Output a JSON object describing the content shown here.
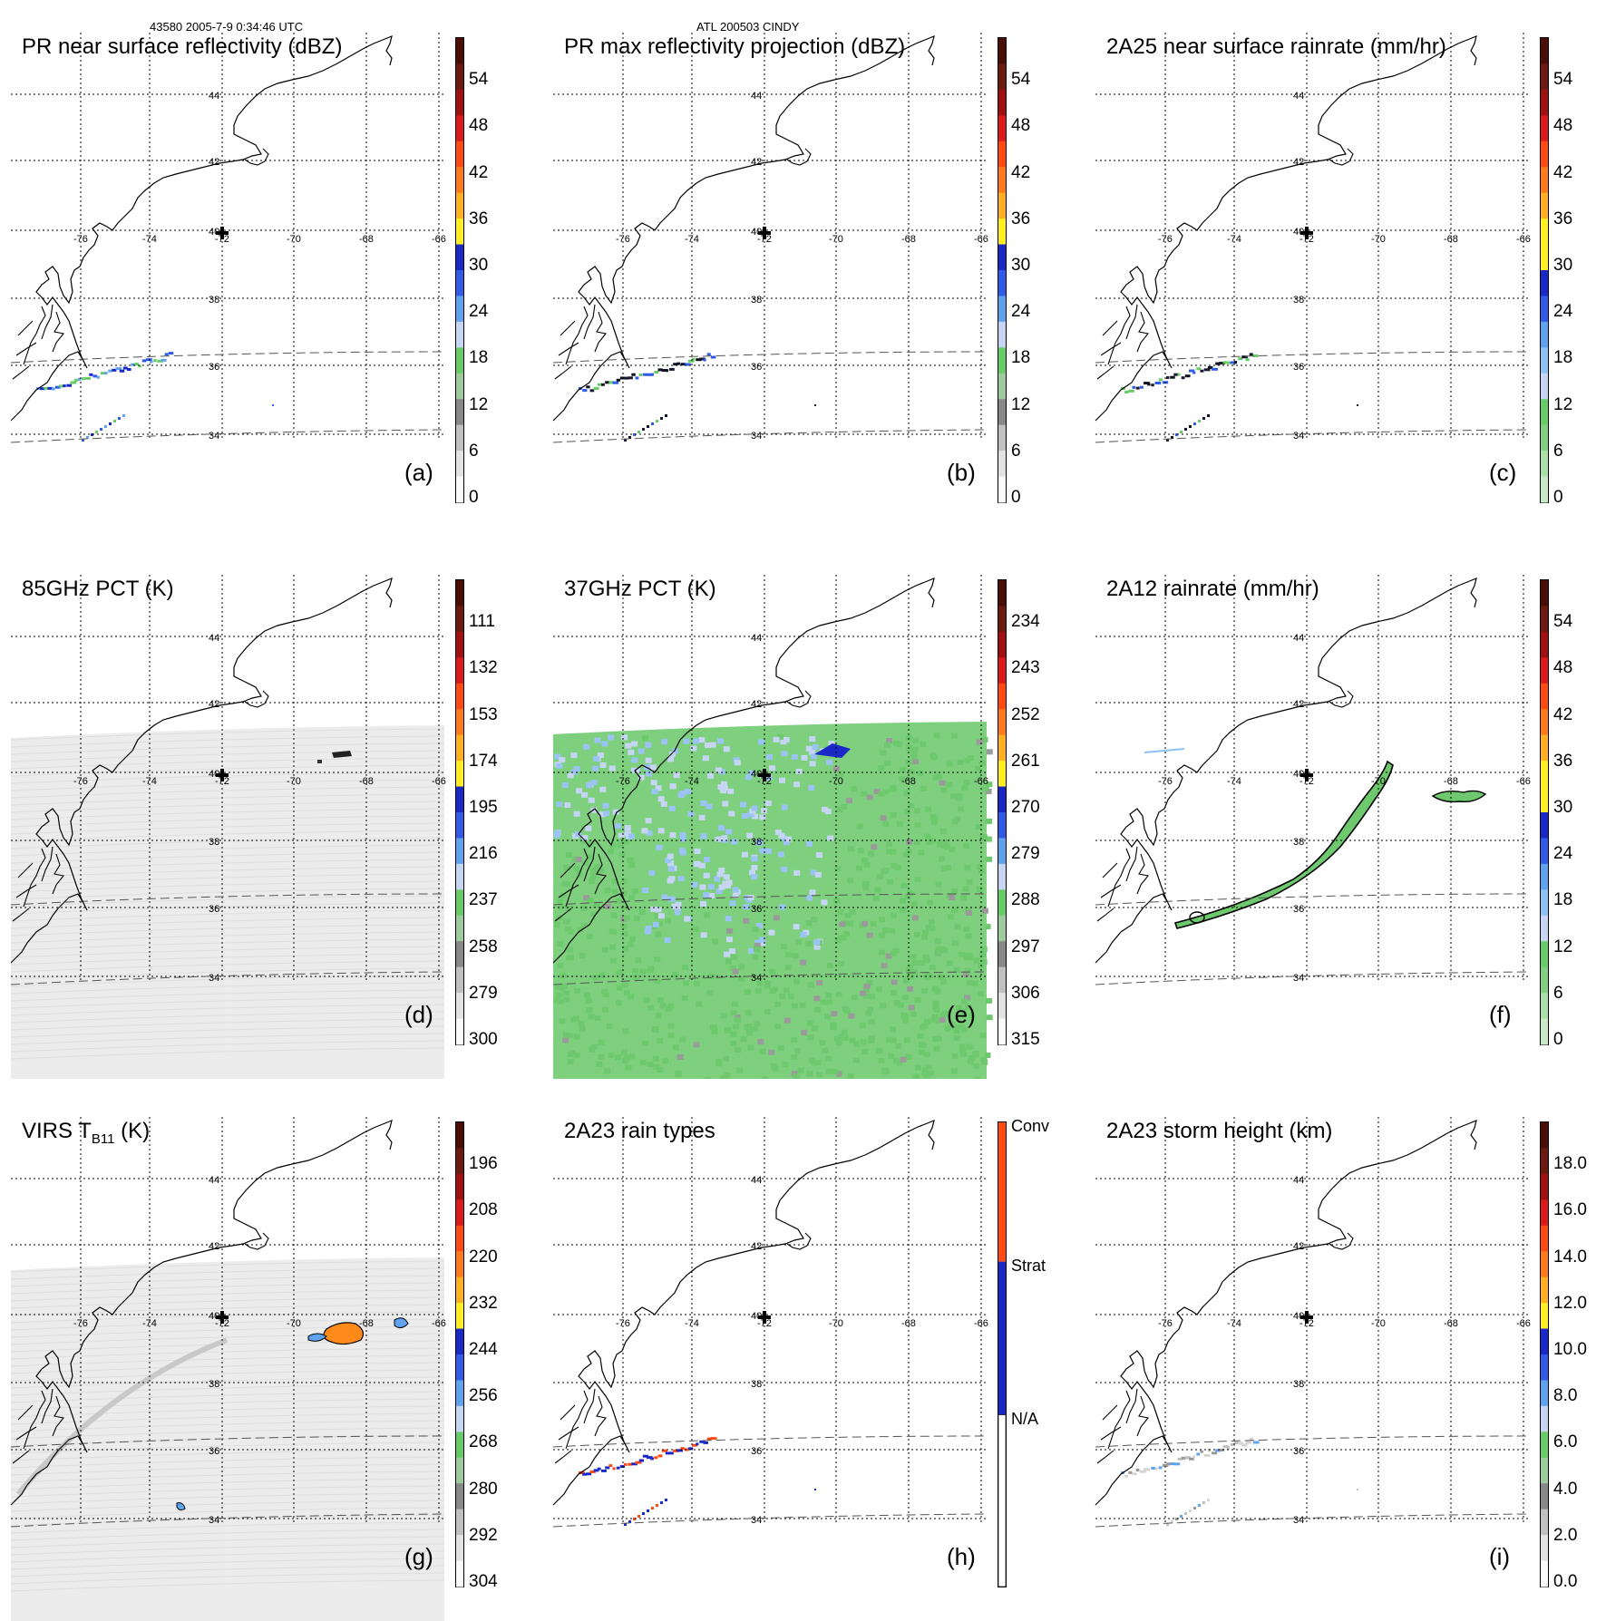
{
  "header": {
    "left": "43580 2005-7-9 0:34:46 UTC",
    "center": "ATL 200503 CINDY"
  },
  "map": {
    "lat_labels": [
      "44",
      "42",
      "40",
      "38",
      "36",
      "34"
    ],
    "lon_labels": [
      "-76",
      "-74",
      "-72",
      "-70",
      "-68",
      "-66"
    ]
  },
  "panels": [
    {
      "id": "a",
      "title": "PR near surface reflectivity (dBZ)",
      "label": "(a)",
      "field": "pr_sparse",
      "ticks": [
        "54",
        "48",
        "42",
        "36",
        "30",
        "24",
        "18",
        "12",
        "6",
        "0"
      ],
      "colors": [
        "#4a0e07",
        "#6b1a10",
        "#a01010",
        "#dd1a1a",
        "#ff4a12",
        "#ff7a1a",
        "#ffb020",
        "#ffef1f",
        "#1b28c8",
        "#2f5be8",
        "#5fa2ee",
        "#c7d5f5",
        "#66cc66",
        "#9ccc9c",
        "#888888",
        "#c0c0c0",
        "#e2e2e2",
        "#fafafa"
      ]
    },
    {
      "id": "b",
      "title": "PR max reflectivity projection (dBZ)",
      "label": "(b)",
      "field": "pr_sparse_dark",
      "ticks": [
        "54",
        "48",
        "42",
        "36",
        "30",
        "24",
        "18",
        "12",
        "6",
        "0"
      ],
      "colors": [
        "#4a0e07",
        "#6b1a10",
        "#a01010",
        "#dd1a1a",
        "#ff4a12",
        "#ff7a1a",
        "#ffb020",
        "#ffef1f",
        "#1b28c8",
        "#2f5be8",
        "#5fa2ee",
        "#c7d5f5",
        "#66cc66",
        "#9ccc9c",
        "#888888",
        "#c0c0c0",
        "#e2e2e2",
        "#fafafa"
      ]
    },
    {
      "id": "c",
      "title": "2A25 near surface rainrate (mm/hr)",
      "label": "(c)",
      "field": "pr_sparse_dark",
      "ticks": [
        "54",
        "48",
        "42",
        "36",
        "30",
        "24",
        "18",
        "12",
        "6",
        "0"
      ],
      "colors": [
        "#4a0e07",
        "#6b1a10",
        "#a01010",
        "#dd1a1a",
        "#ff4a12",
        "#ff7a1a",
        "#ffb020",
        "#ffef1f",
        "#ffef1f",
        "#1b28c8",
        "#2f5be8",
        "#5fa2ee",
        "#8cc2f5",
        "#c7d5f5",
        "#66cc66",
        "#7fd17f",
        "#a8e0a8",
        "#c6ebc6"
      ]
    },
    {
      "id": "d",
      "title": "85GHz PCT (K)",
      "label": "(d)",
      "field": "gray_swath",
      "ticks": [
        "111",
        "132",
        "153",
        "174",
        "195",
        "216",
        "237",
        "258",
        "279",
        "300"
      ],
      "colors": [
        "#4a0e07",
        "#6b1a10",
        "#a01010",
        "#dd1a1a",
        "#ff4a12",
        "#ff7a1a",
        "#ffb020",
        "#ffef1f",
        "#1b28c8",
        "#2f5be8",
        "#5fa2ee",
        "#c7d5f5",
        "#66cc66",
        "#9ccc9c",
        "#888888",
        "#c0c0c0",
        "#e2e2e2",
        "#fafafa"
      ]
    },
    {
      "id": "e",
      "title": "37GHz PCT (K)",
      "label": "(e)",
      "field": "green_swath",
      "ticks": [
        "234",
        "243",
        "252",
        "261",
        "270",
        "279",
        "288",
        "297",
        "306",
        "315"
      ],
      "colors": [
        "#4a0e07",
        "#6b1a10",
        "#a01010",
        "#dd1a1a",
        "#ff4a12",
        "#ff7a1a",
        "#ffb020",
        "#ffef1f",
        "#1b28c8",
        "#2f5be8",
        "#5fa2ee",
        "#c7d5f5",
        "#66cc66",
        "#9ccc9c",
        "#888888",
        "#c0c0c0",
        "#e2e2e2",
        "#fafafa"
      ]
    },
    {
      "id": "f",
      "title": "2A12 rainrate (mm/hr)",
      "label": "(f)",
      "field": "rain_band",
      "ticks": [
        "54",
        "48",
        "42",
        "36",
        "30",
        "24",
        "18",
        "12",
        "6",
        "0"
      ],
      "colors": [
        "#4a0e07",
        "#6b1a10",
        "#a01010",
        "#dd1a1a",
        "#ff4a12",
        "#ff7a1a",
        "#ffb020",
        "#ffef1f",
        "#ffef1f",
        "#1b28c8",
        "#2f5be8",
        "#5fa2ee",
        "#8cc2f5",
        "#c7d5f5",
        "#66cc66",
        "#7fd17f",
        "#a8e0a8",
        "#c6ebc6"
      ]
    },
    {
      "id": "g",
      "title_main": "VIRS T",
      "title_sub": "B11",
      "title_tail": " (K)",
      "label": "(g)",
      "field": "virs",
      "ticks": [
        "196",
        "208",
        "220",
        "232",
        "244",
        "256",
        "268",
        "280",
        "292",
        "304"
      ],
      "colors": [
        "#4a0e07",
        "#6b1a10",
        "#a01010",
        "#dd1a1a",
        "#ff4a12",
        "#ff7a1a",
        "#ffb020",
        "#ffef1f",
        "#1b28c8",
        "#2f5be8",
        "#5fa2ee",
        "#c7d5f5",
        "#66cc66",
        "#9ccc9c",
        "#888888",
        "#c0c0c0",
        "#e2e2e2",
        "#fafafa"
      ]
    },
    {
      "id": "h",
      "title": "2A23 rain types",
      "label": "(h)",
      "field": "raintypes",
      "categories": [
        "Conv",
        "Strat",
        "N/A"
      ],
      "cat_colors": [
        "#ff4a12",
        "#1b28c8",
        "#ffffff"
      ]
    },
    {
      "id": "i",
      "title": "2A23 storm height (km)",
      "label": "(i)",
      "field": "pr_sparse_gray",
      "ticks": [
        "18.0",
        "16.0",
        "14.0",
        "12.0",
        "10.0",
        "8.0",
        "6.0",
        "4.0",
        "2.0",
        "0.0"
      ],
      "colors": [
        "#4a0e07",
        "#6b1a10",
        "#a01010",
        "#dd1a1a",
        "#ff4a12",
        "#ff7a1a",
        "#ffb020",
        "#ffef1f",
        "#1b28c8",
        "#2f5be8",
        "#5fa2ee",
        "#c7d5f5",
        "#66cc66",
        "#9ccc9c",
        "#888888",
        "#c0c0c0",
        "#e2e2e2",
        "#fafafa"
      ]
    }
  ]
}
